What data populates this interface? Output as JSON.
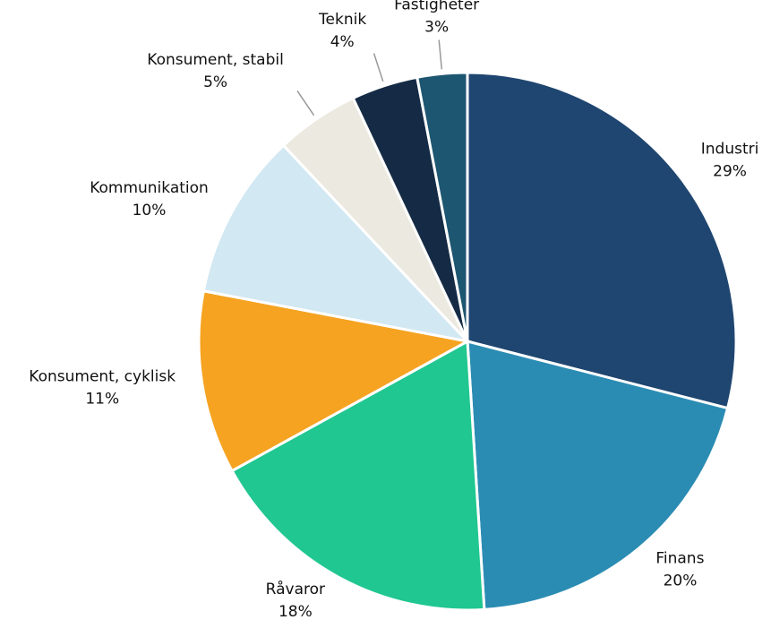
{
  "chart_data": {
    "type": "pie",
    "categories": [
      "Industri",
      "Finans",
      "Råvaror",
      "Konsument, cyklisk",
      "Kommunikation",
      "Konsument, stabil",
      "Teknik",
      "Fastigheter"
    ],
    "values": [
      29,
      20,
      18,
      11,
      10,
      5,
      4,
      3
    ],
    "value_labels": [
      "29%",
      "20%",
      "18%",
      "11%",
      "10%",
      "5%",
      "4%",
      "3%"
    ],
    "colors": [
      "#1f4670",
      "#2b8cb3",
      "#20c790",
      "#f5a321",
      "#d2e8f3",
      "#ebe9e0",
      "#152b45",
      "#1d5670"
    ]
  }
}
